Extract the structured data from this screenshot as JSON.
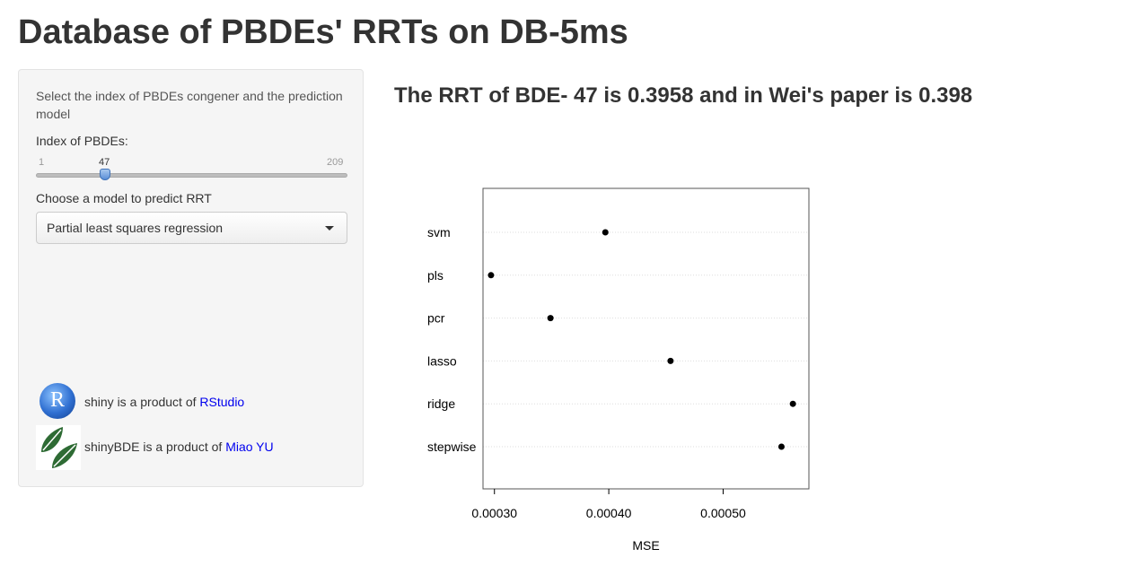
{
  "page": {
    "title": "Database of PBDEs' RRTs on DB-5ms"
  },
  "sidebar": {
    "instructions": "Select the index of PBDEs congener and the prediction model",
    "slider": {
      "label": "Index of PBDEs:",
      "min_label": "1",
      "max_label": "209",
      "value_label": "47",
      "min": 1,
      "max": 209,
      "value": 47
    },
    "model_select": {
      "label": "Choose a model to predict RRT",
      "selected": "Partial least squares regression"
    },
    "credits": [
      {
        "text": "shiny is a product of ",
        "link": "RStudio",
        "icon": "r-logo-icon"
      },
      {
        "text": "shinyBDE is a product of ",
        "link": "Miao YU",
        "icon": "leaf-logo-icon"
      }
    ]
  },
  "main": {
    "result_text": "The RRT of BDE- 47 is 0.3958 and in Wei's paper is 0.398"
  },
  "chart_data": {
    "type": "scatter",
    "title": "",
    "xlabel": "MSE",
    "ylabel": "",
    "categories": [
      "svm",
      "pls",
      "pcr",
      "lasso",
      "ridge",
      "stepwise"
    ],
    "values": [
      0.000397,
      0.000297,
      0.000349,
      0.000454,
      0.000561,
      0.000551
    ],
    "xlim": [
      0.00029,
      0.000575
    ],
    "xticks": [
      0.0003,
      0.0004,
      0.0005
    ],
    "xtick_labels": [
      "0.00030",
      "0.00040",
      "0.00050"
    ],
    "grid": "horizontal dotted",
    "point_color": "#000000"
  }
}
